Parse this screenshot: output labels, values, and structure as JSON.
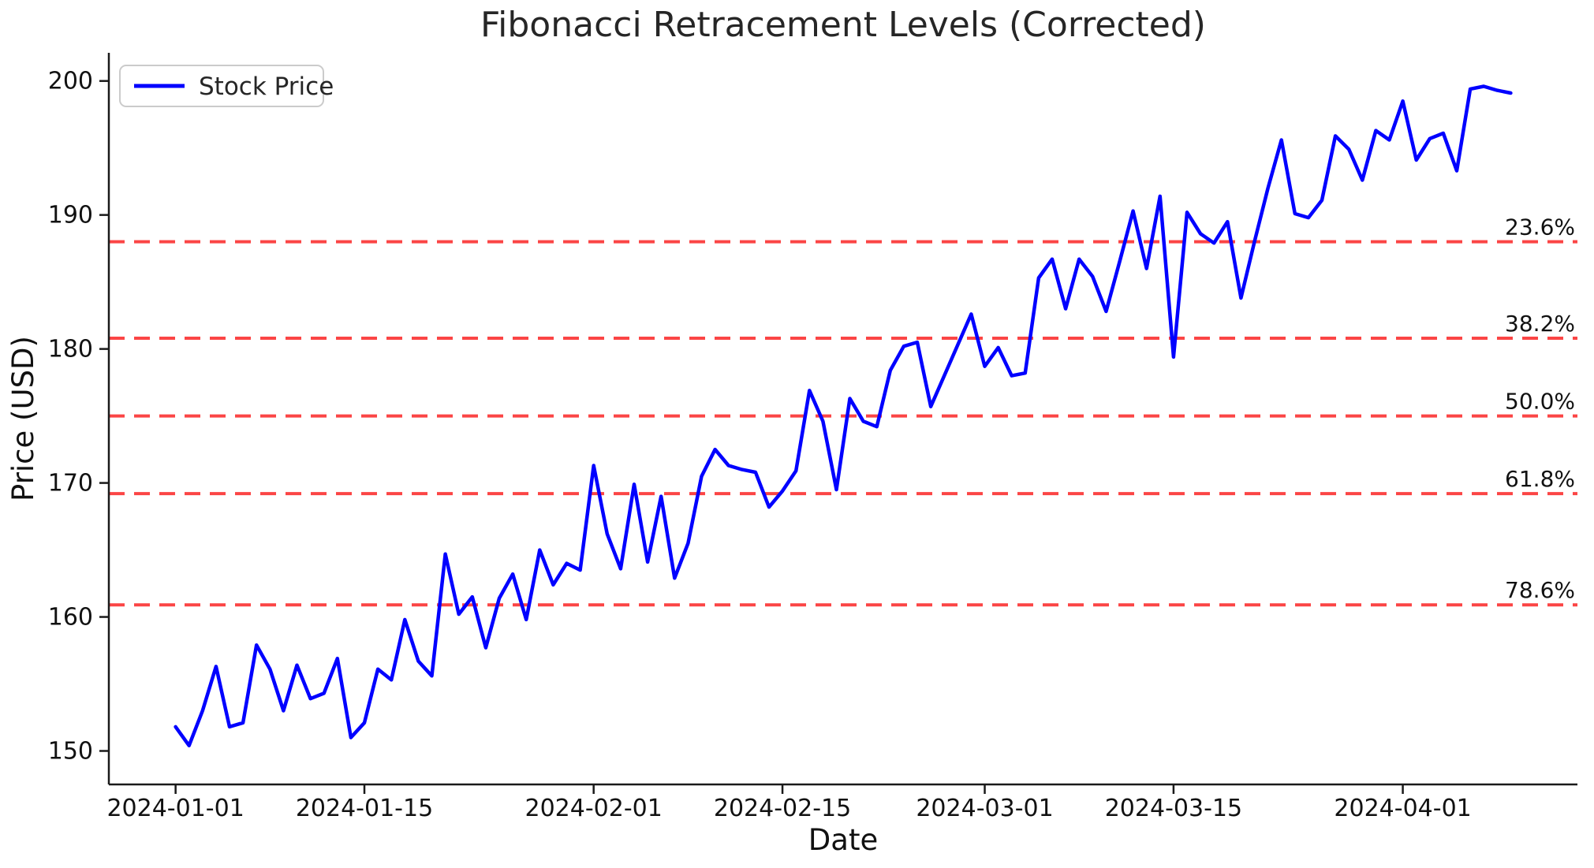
{
  "chart_data": {
    "type": "line",
    "title": "Fibonacci Retracement Levels (Corrected)",
    "xlabel": "Date",
    "ylabel": "Price (USD)",
    "legend_position": "upper left",
    "grid": false,
    "background": "#ffffff",
    "axis_color": "#1a1a1a",
    "line_color": "#0000ff",
    "fib_color": "#fb4545",
    "legend": [
      {
        "label": "Stock Price",
        "color": "#0000ff"
      }
    ],
    "x_start_date": "2024-01-01",
    "x_frequency": "daily",
    "x_ticks": [
      {
        "day": 0,
        "label": "2024-01-01"
      },
      {
        "day": 14,
        "label": "2024-01-15"
      },
      {
        "day": 31,
        "label": "2024-02-01"
      },
      {
        "day": 45,
        "label": "2024-02-15"
      },
      {
        "day": 60,
        "label": "2024-03-01"
      },
      {
        "day": 74,
        "label": "2024-03-15"
      },
      {
        "day": 91,
        "label": "2024-04-01"
      }
    ],
    "y_ticks": [
      150,
      160,
      170,
      180,
      190,
      200
    ],
    "xlim": [
      -4.95,
      103.95
    ],
    "ylim": [
      147.5,
      202.1
    ],
    "fib_levels": [
      {
        "label": "23.6%",
        "value": 188.0
      },
      {
        "label": "38.2%",
        "value": 180.8
      },
      {
        "label": "50.0%",
        "value": 175.0
      },
      {
        "label": "61.8%",
        "value": 169.2
      },
      {
        "label": "78.6%",
        "value": 160.9
      }
    ],
    "series": [
      {
        "name": "Stock Price",
        "color": "#0000ff",
        "values": [
          151.8,
          150.4,
          153.0,
          156.3,
          151.8,
          152.1,
          157.9,
          156.1,
          153.0,
          156.4,
          153.9,
          154.3,
          156.9,
          151.0,
          152.1,
          156.1,
          155.3,
          159.8,
          156.7,
          155.6,
          164.7,
          160.2,
          161.5,
          157.7,
          161.4,
          163.2,
          159.8,
          165.0,
          162.4,
          164.0,
          163.5,
          171.3,
          166.2,
          163.6,
          169.9,
          164.1,
          169.0,
          162.9,
          165.5,
          170.5,
          172.5,
          171.3,
          171.0,
          170.8,
          168.2,
          169.4,
          170.9,
          176.9,
          174.6,
          169.5,
          176.3,
          174.6,
          174.2,
          178.4,
          180.2,
          180.5,
          175.7,
          178.0,
          180.3,
          182.6,
          178.7,
          180.1,
          178.0,
          178.2,
          185.3,
          186.7,
          183.0,
          186.7,
          185.4,
          182.8,
          186.5,
          190.3,
          186.0,
          191.4,
          179.4,
          190.2,
          188.6,
          187.9,
          189.5,
          183.8,
          188.0,
          192.0,
          195.6,
          190.1,
          189.8,
          191.1,
          195.9,
          194.9,
          192.6,
          196.3,
          195.6,
          198.5,
          194.1,
          195.7,
          196.1,
          193.3,
          199.4,
          199.6,
          199.3,
          199.1
        ]
      }
    ]
  }
}
